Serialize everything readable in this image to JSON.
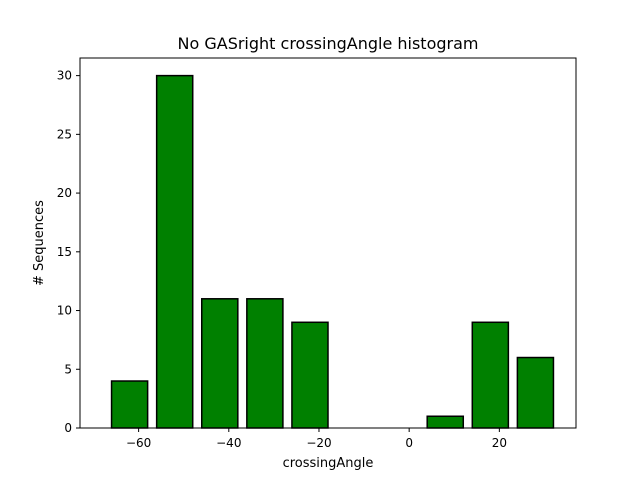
{
  "chart_data": {
    "type": "bar",
    "title": "No GASright crossingAngle histogram",
    "xlabel": "crossingAngle",
    "ylabel": "# Sequences",
    "bin_centers": [
      -62,
      -52,
      -42,
      -32,
      -22,
      -12,
      -2,
      8,
      18,
      28
    ],
    "bin_width": 8,
    "values": [
      4,
      30,
      11,
      11,
      9,
      0,
      0,
      1,
      9,
      6
    ],
    "xlim": [
      -73,
      37
    ],
    "ylim": [
      0,
      31.5
    ],
    "xticks": [
      -60,
      -40,
      -20,
      0,
      20
    ],
    "xtick_labels": [
      "−60",
      "−40",
      "−20",
      "0",
      "20"
    ],
    "yticks": [
      0,
      5,
      10,
      15,
      20,
      25,
      30
    ],
    "ytick_labels": [
      "0",
      "5",
      "10",
      "15",
      "20",
      "25",
      "30"
    ],
    "bar_color": "#008000",
    "edge_color": "#000000",
    "grid": false,
    "legend": "none"
  }
}
